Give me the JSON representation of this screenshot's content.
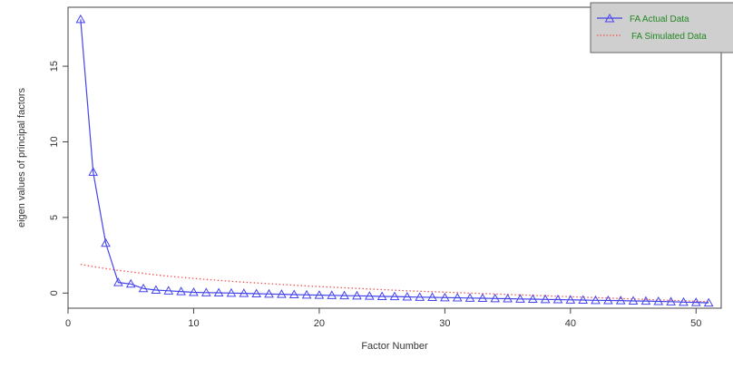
{
  "chart_data": {
    "type": "line",
    "title": "",
    "xlabel": "Factor Number",
    "ylabel": "eigen values of principal factors",
    "xlim": [
      0,
      52
    ],
    "ylim": [
      -1.0,
      18.9
    ],
    "xticks": [
      "0",
      "10",
      "20",
      "30",
      "40",
      "50"
    ],
    "yticks": [
      "0",
      "5",
      "10",
      "15"
    ],
    "grid": false,
    "legend_position": "top-right",
    "series": [
      {
        "name": "FA Actual Data",
        "color": "#4444ee",
        "marker": "triangle",
        "x": [
          1,
          2,
          3,
          4,
          5,
          6,
          7,
          8,
          9,
          10,
          11,
          12,
          13,
          14,
          15,
          16,
          17,
          18,
          19,
          20,
          21,
          22,
          23,
          24,
          25,
          26,
          27,
          28,
          29,
          30,
          31,
          32,
          33,
          34,
          35,
          36,
          37,
          38,
          39,
          40,
          41,
          42,
          43,
          44,
          45,
          46,
          47,
          48,
          49,
          50,
          51
        ],
        "values": [
          18.1,
          8.0,
          3.3,
          0.7,
          0.6,
          0.3,
          0.2,
          0.15,
          0.1,
          0.05,
          0.03,
          0.02,
          0.0,
          -0.02,
          -0.04,
          -0.06,
          -0.08,
          -0.1,
          -0.12,
          -0.14,
          -0.15,
          -0.17,
          -0.18,
          -0.2,
          -0.22,
          -0.23,
          -0.25,
          -0.27,
          -0.28,
          -0.3,
          -0.31,
          -0.33,
          -0.34,
          -0.36,
          -0.37,
          -0.39,
          -0.4,
          -0.42,
          -0.43,
          -0.45,
          -0.46,
          -0.48,
          -0.49,
          -0.5,
          -0.52,
          -0.53,
          -0.55,
          -0.57,
          -0.6,
          -0.62,
          -0.65
        ]
      },
      {
        "name": "FA Simulated Data",
        "color": "#ee5555",
        "line_style": "dotted",
        "x": [
          1,
          2,
          3,
          4,
          5,
          6,
          7,
          8,
          9,
          10,
          11,
          12,
          13,
          14,
          15,
          16,
          17,
          18,
          19,
          20,
          21,
          22,
          23,
          24,
          25,
          26,
          27,
          28,
          29,
          30,
          31,
          32,
          33,
          34,
          35,
          36,
          37,
          38,
          39,
          40,
          41,
          42,
          43,
          44,
          45,
          46,
          47,
          48,
          49,
          50,
          51
        ],
        "values": [
          1.9,
          1.75,
          1.62,
          1.5,
          1.4,
          1.3,
          1.2,
          1.12,
          1.04,
          0.97,
          0.9,
          0.84,
          0.78,
          0.72,
          0.67,
          0.62,
          0.57,
          0.52,
          0.47,
          0.43,
          0.39,
          0.35,
          0.31,
          0.27,
          0.23,
          0.19,
          0.15,
          0.12,
          0.09,
          0.06,
          0.03,
          0.0,
          -0.03,
          -0.06,
          -0.09,
          -0.12,
          -0.15,
          -0.18,
          -0.21,
          -0.24,
          -0.27,
          -0.3,
          -0.33,
          -0.36,
          -0.39,
          -0.42,
          -0.45,
          -0.48,
          -0.51,
          -0.54,
          -0.57
        ]
      }
    ]
  }
}
